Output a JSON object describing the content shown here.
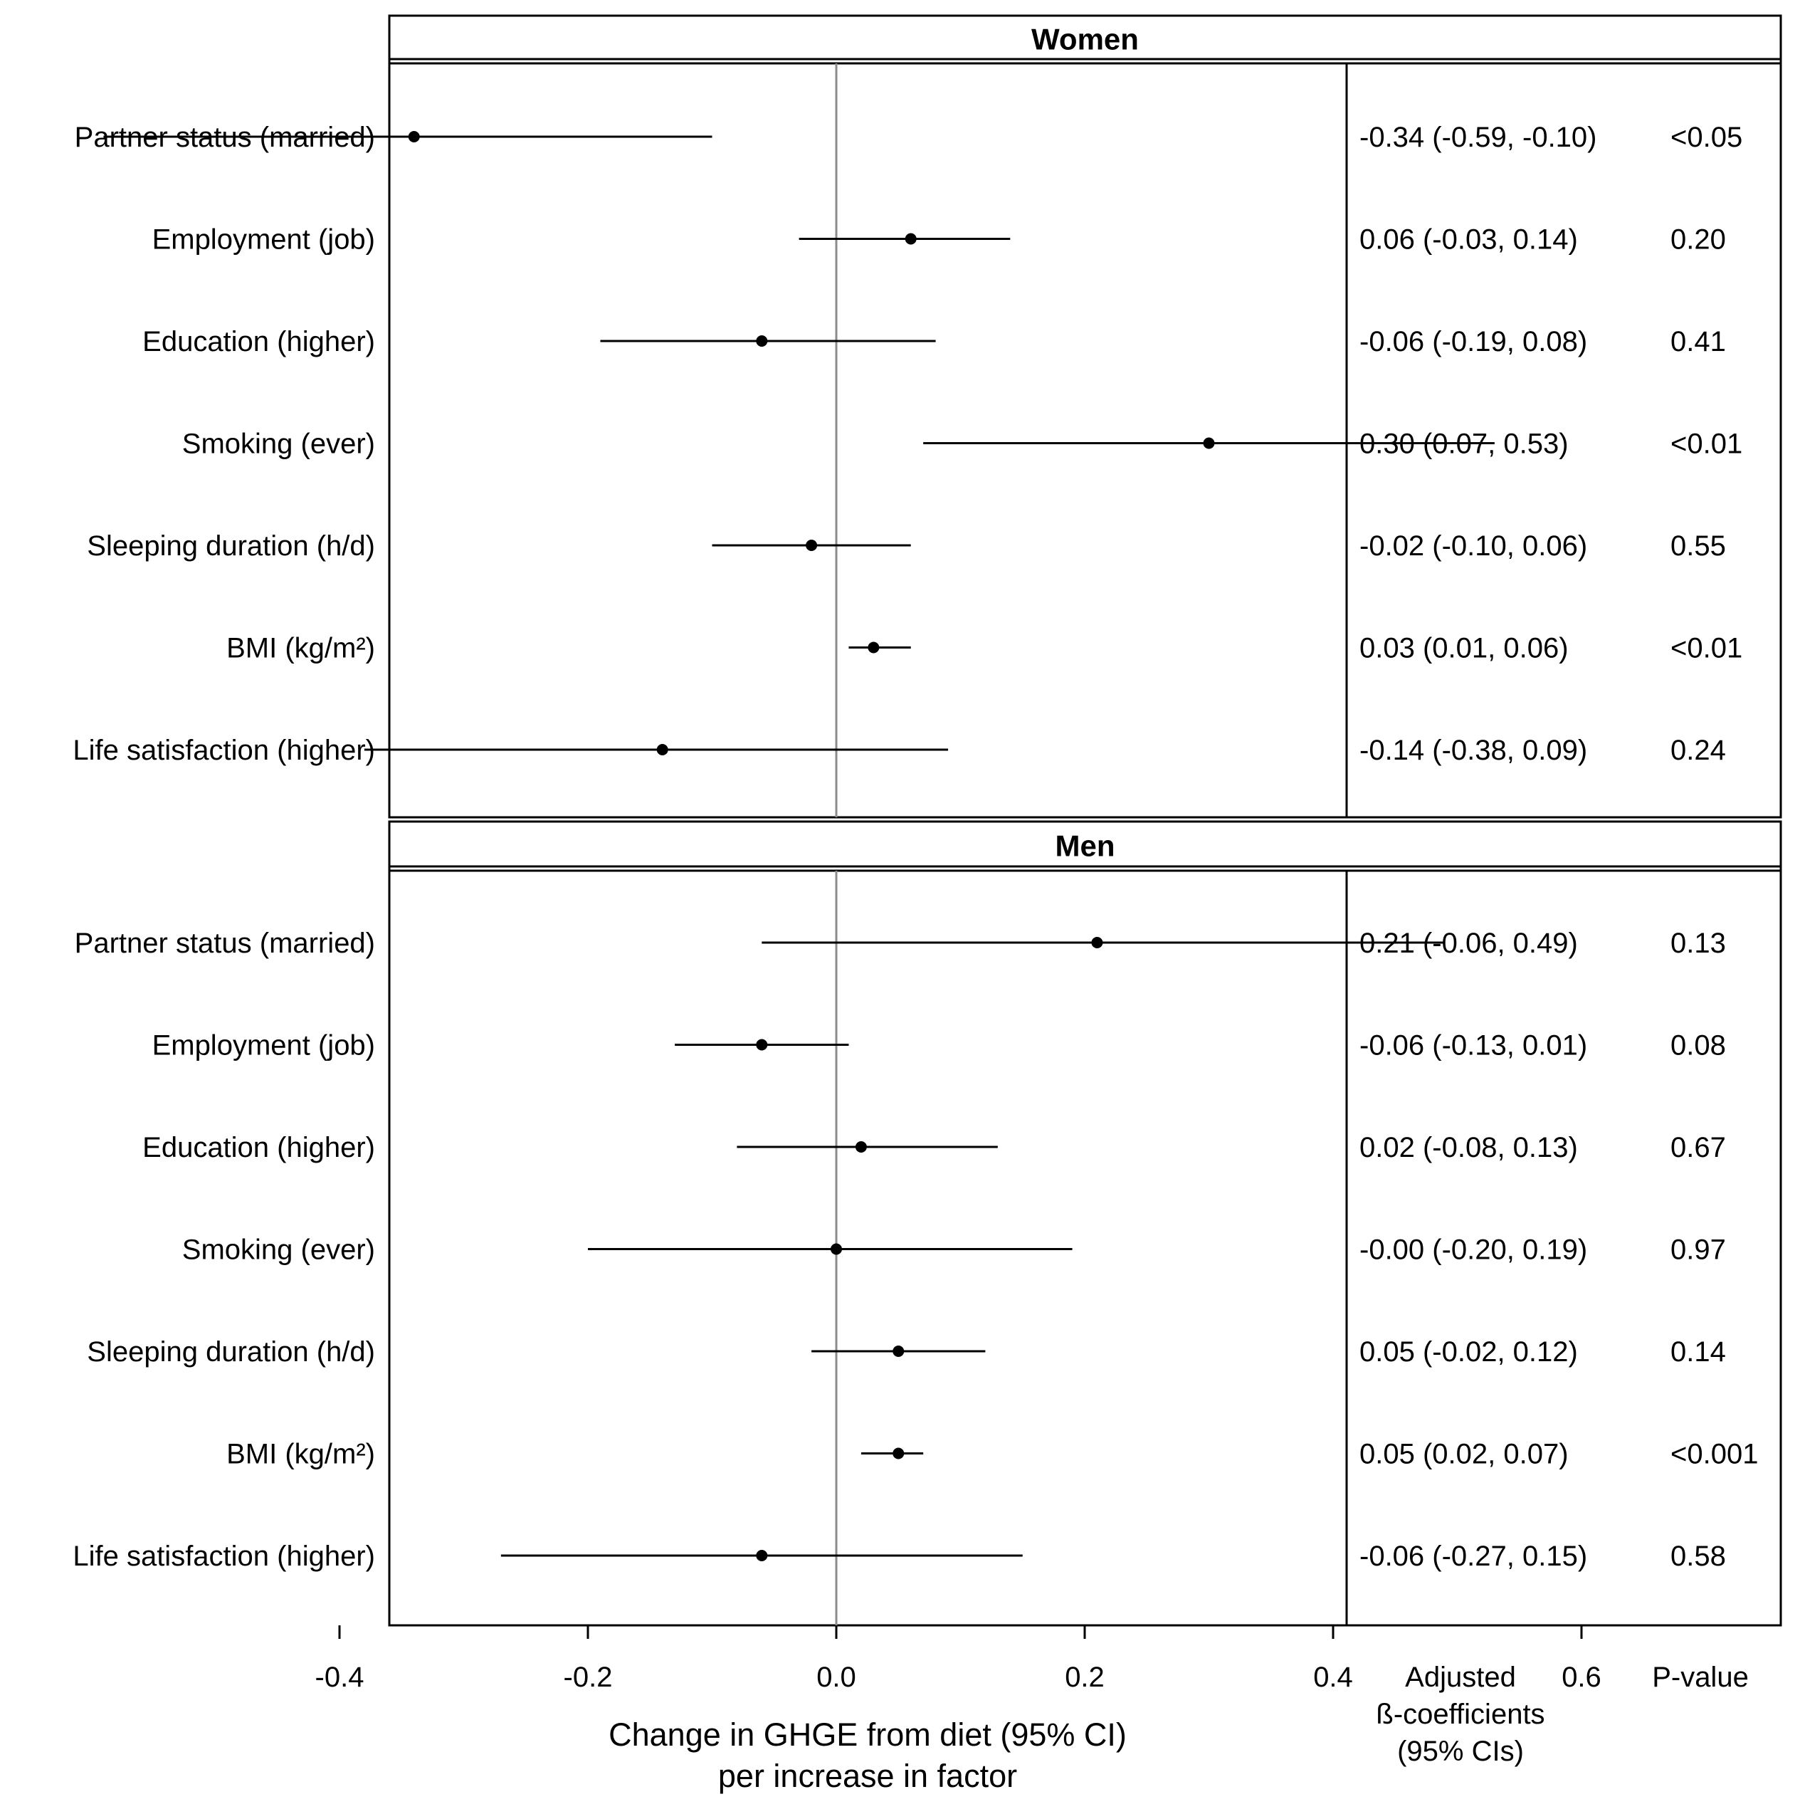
{
  "chart_data": {
    "type": "forest",
    "x_axis": {
      "label_line1": "Change in GHGE from diet (95% CI)",
      "label_line2": "per increase in factor",
      "ticks": [
        -0.4,
        -0.2,
        0.0,
        0.2,
        0.4,
        0.6
      ],
      "tick_labels": [
        "-0.4",
        "-0.2",
        "0.0",
        "0.2",
        "0.4",
        "0.6"
      ],
      "reference_line": 0.0
    },
    "column_headers": {
      "coef_line1": "Adjusted",
      "coef_line2": "ß-coefficients",
      "coef_line3": "(95% CIs)",
      "pvalue": "P-value"
    },
    "panels": [
      {
        "title": "Women",
        "rows": [
          {
            "label": "Partner status (married)",
            "estimate": -0.34,
            "lower": -0.59,
            "upper": -0.1,
            "ci_text": "-0.34 (-0.59, -0.10)",
            "p_text": "<0.05"
          },
          {
            "label": "Employment (job)",
            "estimate": 0.06,
            "lower": -0.03,
            "upper": 0.14,
            "ci_text": "0.06 (-0.03, 0.14)",
            "p_text": "0.20"
          },
          {
            "label": "Education (higher)",
            "estimate": -0.06,
            "lower": -0.19,
            "upper": 0.08,
            "ci_text": "-0.06 (-0.19, 0.08)",
            "p_text": "0.41"
          },
          {
            "label": "Smoking (ever)",
            "estimate": 0.3,
            "lower": 0.07,
            "upper": 0.53,
            "ci_text": "0.30 (0.07, 0.53)",
            "p_text": "<0.01"
          },
          {
            "label": "Sleeping duration (h/d)",
            "estimate": -0.02,
            "lower": -0.1,
            "upper": 0.06,
            "ci_text": "-0.02 (-0.10, 0.06)",
            "p_text": "0.55"
          },
          {
            "label": "BMI (kg/m²)",
            "estimate": 0.03,
            "lower": 0.01,
            "upper": 0.06,
            "ci_text": "0.03 (0.01, 0.06)",
            "p_text": "<0.01"
          },
          {
            "label": "Life satisfaction (higher)",
            "estimate": -0.14,
            "lower": -0.38,
            "upper": 0.09,
            "ci_text": "-0.14 (-0.38, 0.09)",
            "p_text": "0.24"
          }
        ]
      },
      {
        "title": "Men",
        "rows": [
          {
            "label": "Partner status (married)",
            "estimate": 0.21,
            "lower": -0.06,
            "upper": 0.49,
            "ci_text": "0.21 (-0.06, 0.49)",
            "p_text": "0.13"
          },
          {
            "label": "Employment (job)",
            "estimate": -0.06,
            "lower": -0.13,
            "upper": 0.01,
            "ci_text": "-0.06 (-0.13, 0.01)",
            "p_text": "0.08"
          },
          {
            "label": "Education (higher)",
            "estimate": 0.02,
            "lower": -0.08,
            "upper": 0.13,
            "ci_text": "0.02 (-0.08, 0.13)",
            "p_text": "0.67"
          },
          {
            "label": "Smoking (ever)",
            "estimate": -0.0,
            "lower": -0.2,
            "upper": 0.19,
            "ci_text": "-0.00 (-0.20, 0.19)",
            "p_text": "0.97"
          },
          {
            "label": "Sleeping duration (h/d)",
            "estimate": 0.05,
            "lower": -0.02,
            "upper": 0.12,
            "ci_text": "0.05 (-0.02, 0.12)",
            "p_text": "0.14"
          },
          {
            "label": "BMI (kg/m²)",
            "estimate": 0.05,
            "lower": 0.02,
            "upper": 0.07,
            "ci_text": "0.05 (0.02, 0.07)",
            "p_text": "<0.001"
          },
          {
            "label": "Life satisfaction (higher)",
            "estimate": -0.06,
            "lower": -0.27,
            "upper": 0.15,
            "ci_text": "-0.06 (-0.27, 0.15)",
            "p_text": "0.58"
          }
        ]
      }
    ]
  }
}
